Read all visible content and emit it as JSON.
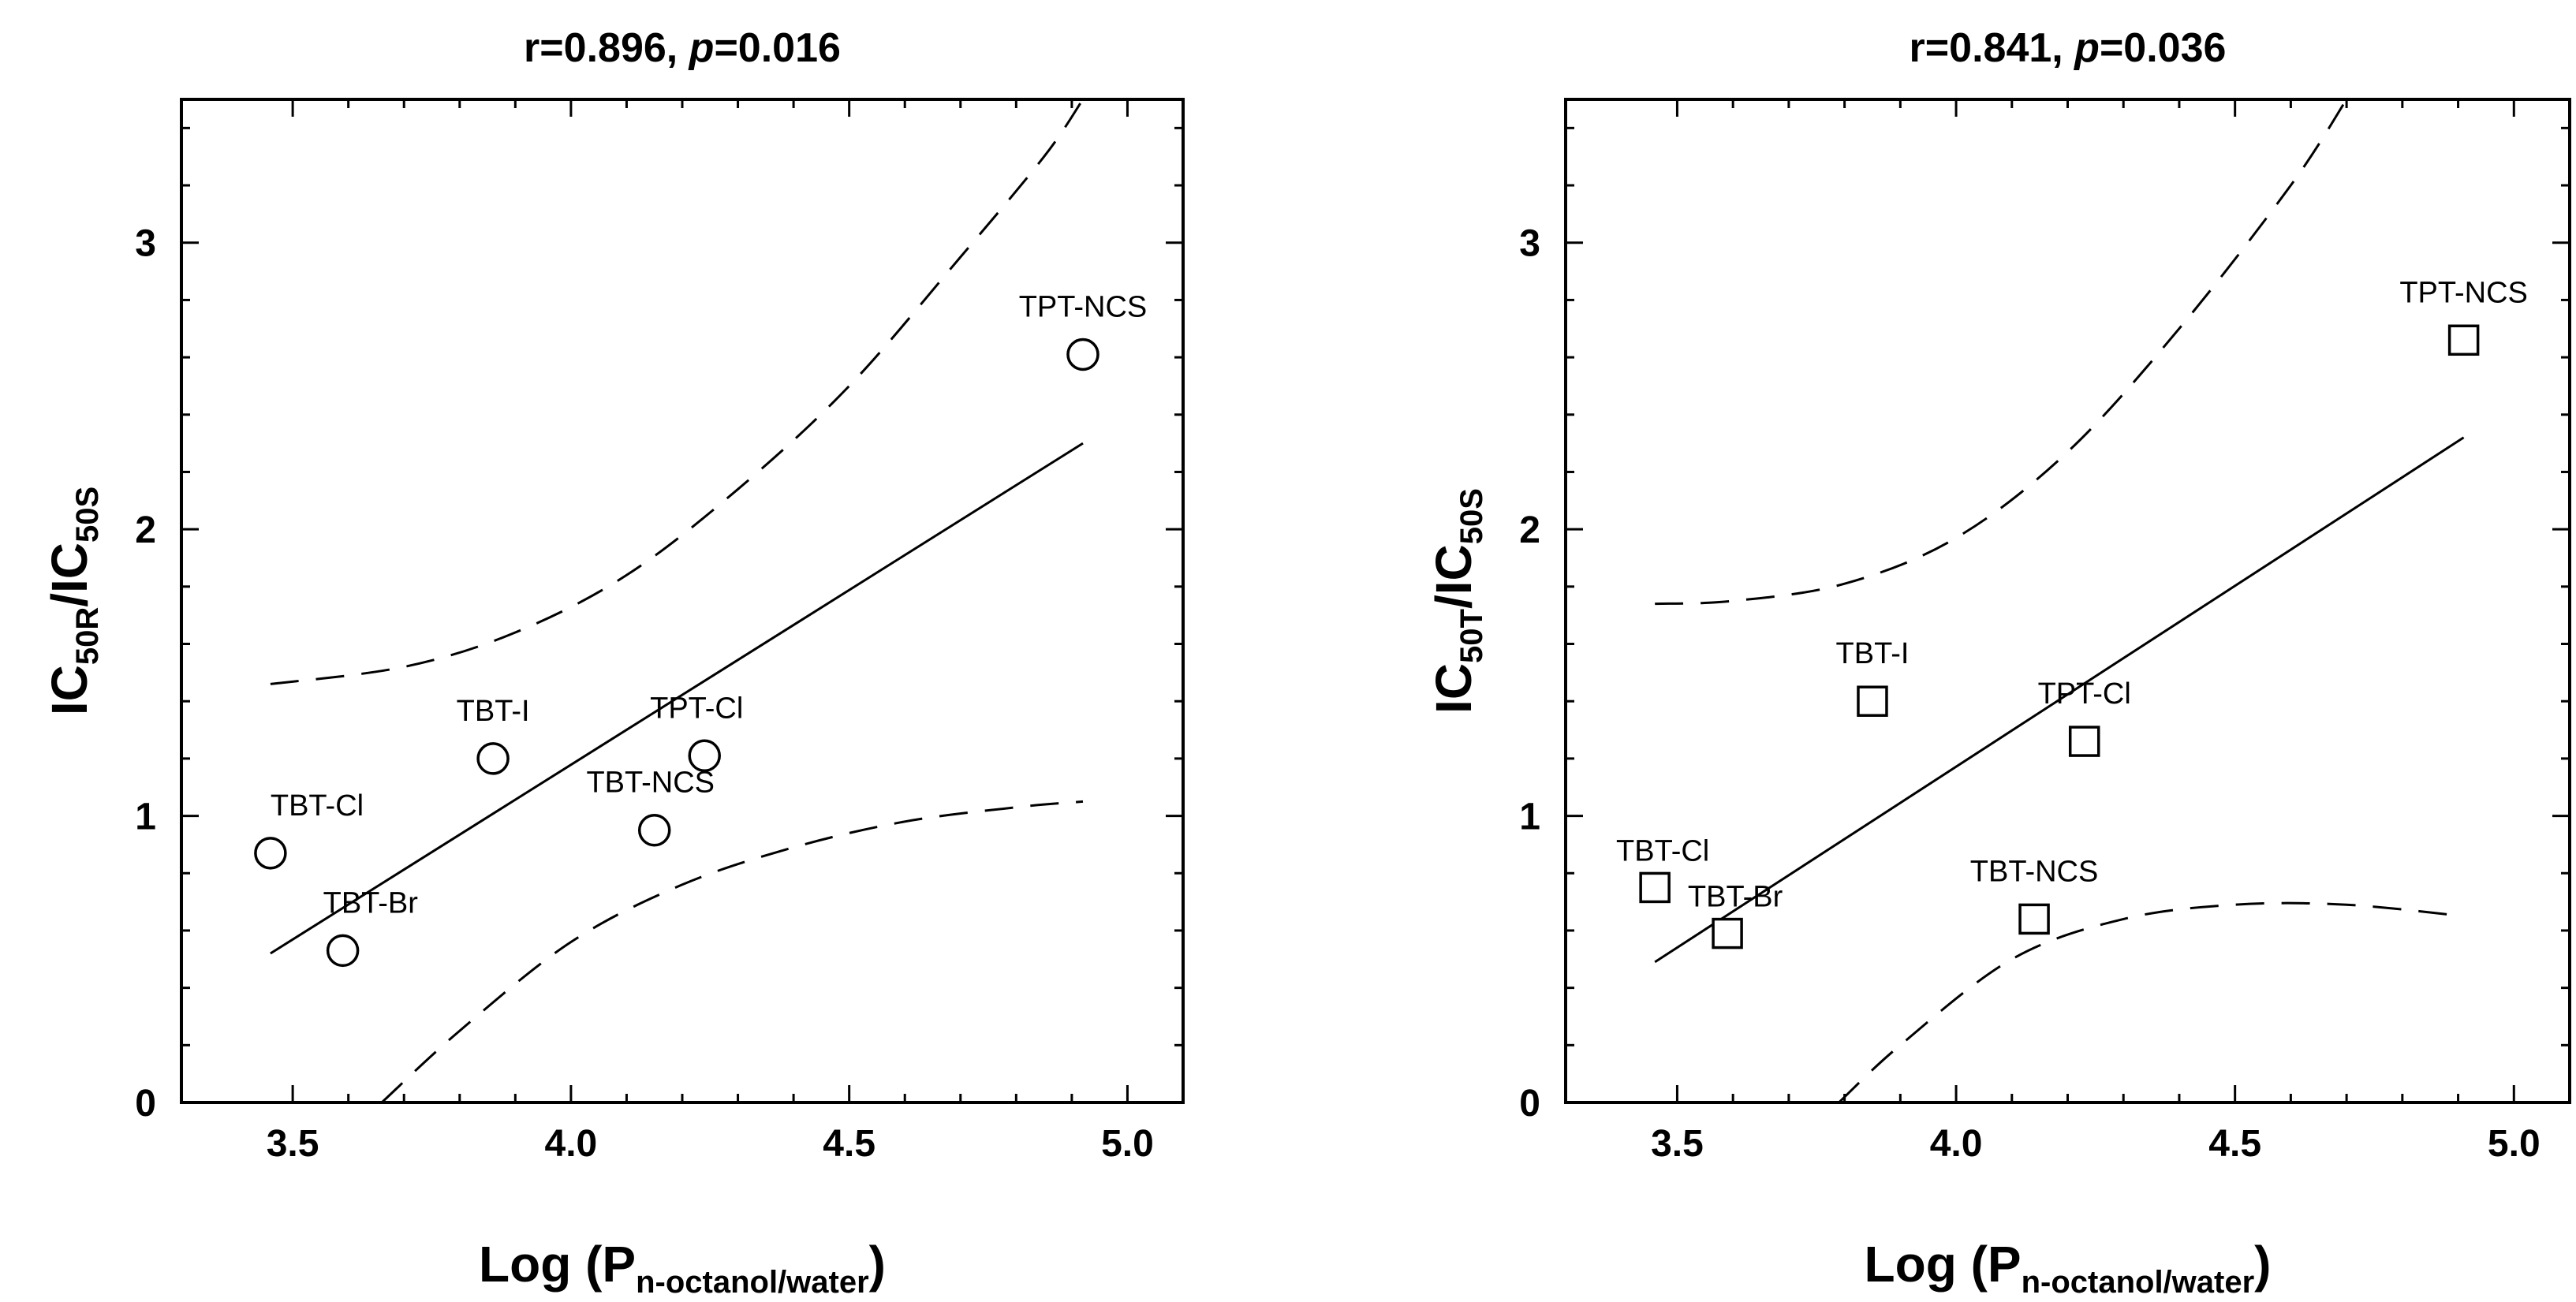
{
  "chart_data": [
    {
      "type": "scatter",
      "title": {
        "prefix": "r=0.896, ",
        "italic": "p",
        "suffix": "=0.016"
      },
      "xlabel": {
        "main": "Log (P",
        "sub": "n-octanol/water",
        "close": ")"
      },
      "ylabel": {
        "main1": "IC",
        "sub1": "50R",
        "mid": "/IC",
        "sub2": "50S"
      },
      "xlim": [
        3.3,
        5.1
      ],
      "ylim": [
        0,
        3.5
      ],
      "xticks": [
        3.5,
        4.0,
        4.5,
        5.0
      ],
      "xtick_labels": [
        "3.5",
        "4.0",
        "4.5",
        "5.0"
      ],
      "yticks": [
        0,
        1,
        2,
        3
      ],
      "ytick_labels": [
        "0",
        "1",
        "2",
        "3"
      ],
      "marker": "circle",
      "points": [
        {
          "label": "TBT-Cl",
          "x": 3.46,
          "y": 0.87
        },
        {
          "label": "TBT-Br",
          "x": 3.59,
          "y": 0.53
        },
        {
          "label": "TBT-I",
          "x": 3.86,
          "y": 1.2
        },
        {
          "label": "TBT-NCS",
          "x": 4.15,
          "y": 0.95
        },
        {
          "label": "TPT-Cl",
          "x": 4.24,
          "y": 1.21
        },
        {
          "label": "TPT-NCS",
          "x": 4.92,
          "y": 2.61
        }
      ],
      "regression_line": [
        [
          3.46,
          0.52
        ],
        [
          4.92,
          2.3
        ]
      ],
      "ci_upper": [
        [
          3.46,
          1.46
        ],
        [
          3.7,
          1.52
        ],
        [
          3.9,
          1.64
        ],
        [
          4.1,
          1.84
        ],
        [
          4.3,
          2.14
        ],
        [
          4.5,
          2.5
        ],
        [
          4.7,
          2.95
        ],
        [
          4.85,
          3.3
        ],
        [
          4.92,
          3.5
        ]
      ],
      "ci_lower": [
        [
          3.66,
          0.0
        ],
        [
          3.8,
          0.25
        ],
        [
          4.0,
          0.56
        ],
        [
          4.2,
          0.76
        ],
        [
          4.4,
          0.89
        ],
        [
          4.6,
          0.98
        ],
        [
          4.8,
          1.03
        ],
        [
          4.92,
          1.05
        ]
      ]
    },
    {
      "type": "scatter",
      "title": {
        "prefix": "r=0.841, ",
        "italic": "p",
        "suffix": "=0.036"
      },
      "xlabel": {
        "main": "Log (P",
        "sub": "n-octanol/water",
        "close": ")"
      },
      "ylabel": {
        "main1": "IC",
        "sub1": "50T",
        "mid": "/IC",
        "sub2": "50S"
      },
      "xlim": [
        3.3,
        5.1
      ],
      "ylim": [
        0,
        3.5
      ],
      "xticks": [
        3.5,
        4.0,
        4.5,
        5.0
      ],
      "xtick_labels": [
        "3.5",
        "4.0",
        "4.5",
        "5.0"
      ],
      "yticks": [
        0,
        1,
        2,
        3
      ],
      "ytick_labels": [
        "0",
        "1",
        "2",
        "3"
      ],
      "marker": "square",
      "points": [
        {
          "label": "TBT-Cl",
          "x": 3.46,
          "y": 0.75
        },
        {
          "label": "TBT-Br",
          "x": 3.59,
          "y": 0.59
        },
        {
          "label": "TBT-I",
          "x": 3.85,
          "y": 1.4
        },
        {
          "label": "TBT-NCS",
          "x": 4.14,
          "y": 0.64
        },
        {
          "label": "TPT-Cl",
          "x": 4.23,
          "y": 1.26
        },
        {
          "label": "TPT-NCS",
          "x": 4.91,
          "y": 2.66
        }
      ],
      "regression_line": [
        [
          3.46,
          0.49
        ],
        [
          4.91,
          2.32
        ]
      ],
      "ci_upper": [
        [
          3.46,
          1.74
        ],
        [
          3.6,
          1.75
        ],
        [
          3.8,
          1.81
        ],
        [
          4.0,
          1.97
        ],
        [
          4.2,
          2.27
        ],
        [
          4.4,
          2.7
        ],
        [
          4.6,
          3.2
        ],
        [
          4.7,
          3.5
        ]
      ],
      "ci_lower": [
        [
          3.79,
          0.0
        ],
        [
          3.9,
          0.2
        ],
        [
          4.1,
          0.5
        ],
        [
          4.3,
          0.64
        ],
        [
          4.5,
          0.69
        ],
        [
          4.7,
          0.69
        ],
        [
          4.91,
          0.65
        ]
      ]
    }
  ]
}
